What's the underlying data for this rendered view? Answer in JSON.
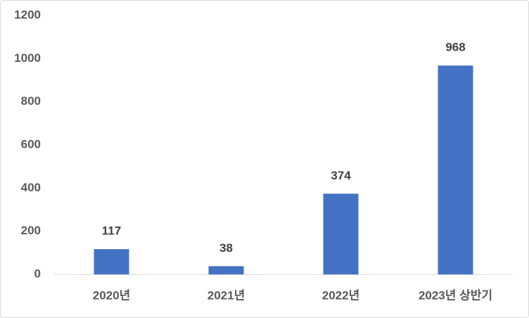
{
  "chart_data": {
    "type": "bar",
    "categories": [
      "2020년",
      "2021년",
      "2022년",
      "2023년 상반기"
    ],
    "values": [
      117,
      38,
      374,
      968
    ],
    "color": "#4472c4",
    "ylim": [
      0,
      1200
    ],
    "yticks": [
      0,
      200,
      400,
      600,
      800,
      1000,
      1200
    ],
    "grid": false
  }
}
